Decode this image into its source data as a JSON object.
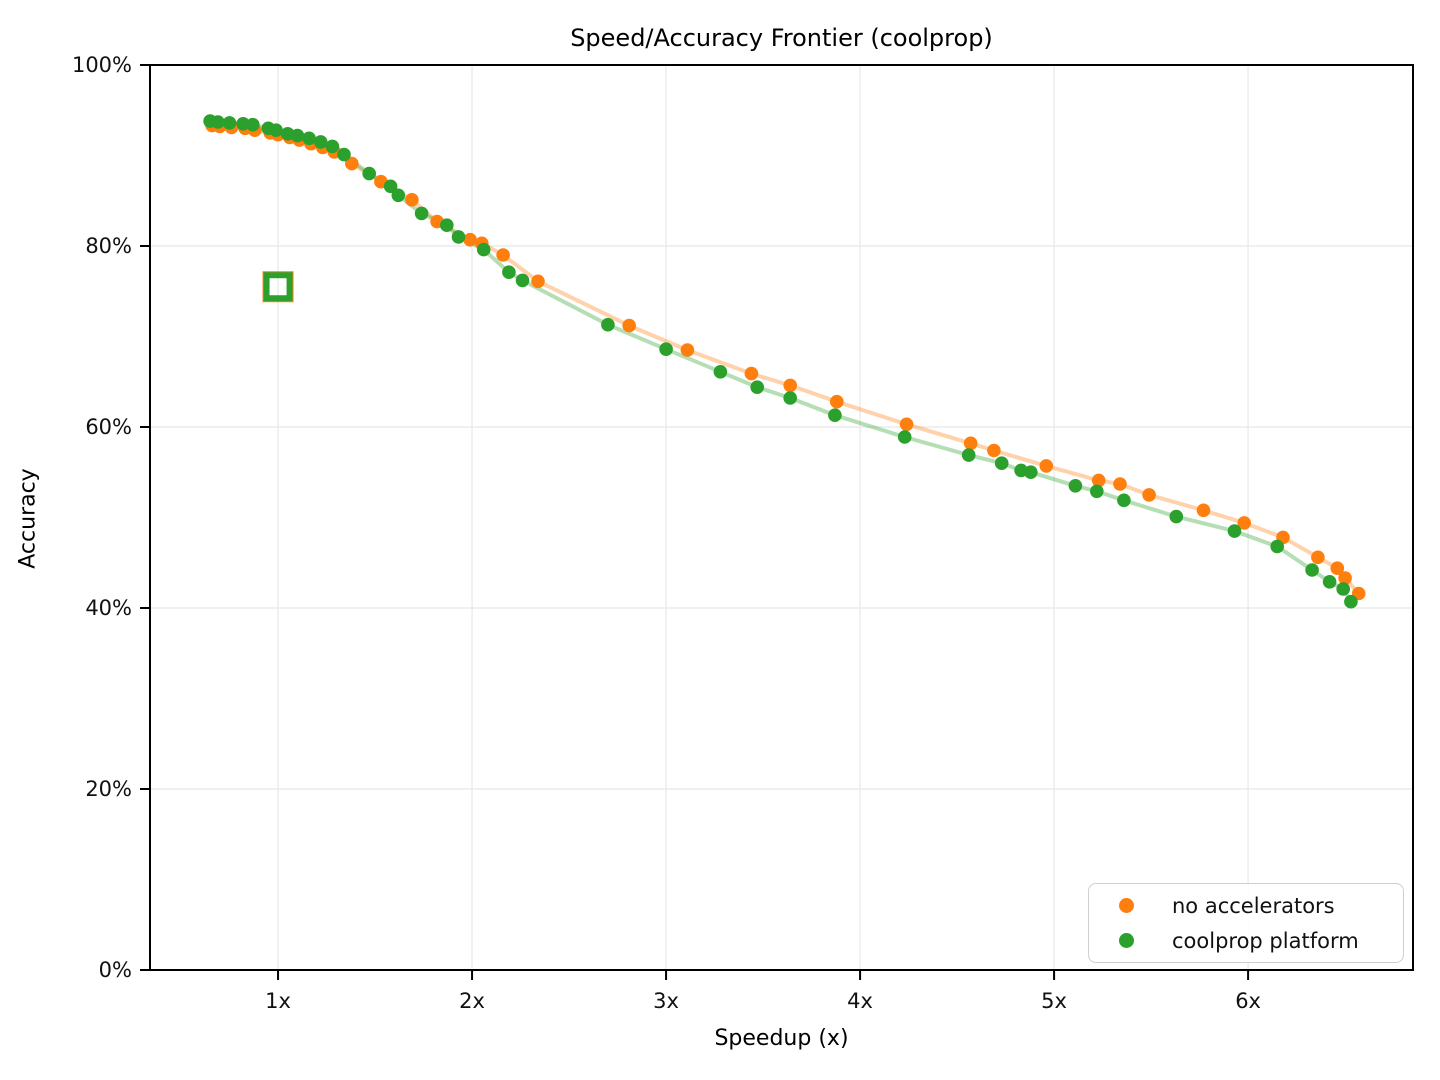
{
  "chart_data": {
    "type": "scatter",
    "title": "Speed/Accuracy Frontier (coolprop)",
    "xlabel": "Speedup (x)",
    "ylabel": "Accuracy",
    "xlim": [
      0.34,
      6.85
    ],
    "ylim": [
      0,
      100
    ],
    "grid": true,
    "legend_position": "lower right",
    "x_ticks": [
      {
        "value": 1,
        "label": "1x"
      },
      {
        "value": 2,
        "label": "2x"
      },
      {
        "value": 3,
        "label": "3x"
      },
      {
        "value": 4,
        "label": "4x"
      },
      {
        "value": 5,
        "label": "5x"
      },
      {
        "value": 6,
        "label": "6x"
      }
    ],
    "y_ticks": [
      {
        "value": 0,
        "label": "0%"
      },
      {
        "value": 20,
        "label": "20%"
      },
      {
        "value": 40,
        "label": "40%"
      },
      {
        "value": 60,
        "label": "60%"
      },
      {
        "value": 80,
        "label": "80%"
      },
      {
        "value": 100,
        "label": "100%"
      }
    ],
    "series": [
      {
        "name": "no accelerators",
        "color": "#ff7f0e",
        "marker": "circle",
        "points": [
          [
            0.66,
            93.3
          ],
          [
            0.7,
            93.2
          ],
          [
            0.76,
            93.1
          ],
          [
            0.83,
            93.0
          ],
          [
            0.88,
            92.8
          ],
          [
            0.96,
            92.5
          ],
          [
            1.0,
            92.3
          ],
          [
            1.06,
            92.0
          ],
          [
            1.11,
            91.7
          ],
          [
            1.17,
            91.3
          ],
          [
            1.23,
            90.9
          ],
          [
            1.29,
            90.4
          ],
          [
            1.38,
            89.1
          ],
          [
            1.53,
            87.1
          ],
          [
            1.69,
            85.1
          ],
          [
            1.82,
            82.7
          ],
          [
            1.99,
            80.7
          ],
          [
            2.05,
            80.3
          ],
          [
            2.16,
            79.0
          ],
          [
            2.34,
            76.1
          ],
          [
            2.81,
            71.2
          ],
          [
            3.11,
            68.5
          ],
          [
            3.44,
            65.9
          ],
          [
            3.64,
            64.6
          ],
          [
            3.88,
            62.8
          ],
          [
            4.24,
            60.3
          ],
          [
            4.57,
            58.2
          ],
          [
            4.69,
            57.4
          ],
          [
            4.96,
            55.7
          ],
          [
            5.23,
            54.1
          ],
          [
            5.34,
            53.7
          ],
          [
            5.49,
            52.5
          ],
          [
            5.77,
            50.8
          ],
          [
            5.98,
            49.4
          ],
          [
            6.18,
            47.8
          ],
          [
            6.36,
            45.6
          ],
          [
            6.46,
            44.4
          ],
          [
            6.5,
            43.3
          ],
          [
            6.57,
            41.6
          ]
        ]
      },
      {
        "name": "coolprop platform",
        "color": "#2ca02c",
        "marker": "circle",
        "points": [
          [
            0.65,
            93.8
          ],
          [
            0.69,
            93.7
          ],
          [
            0.75,
            93.6
          ],
          [
            0.82,
            93.5
          ],
          [
            0.87,
            93.4
          ],
          [
            0.95,
            93.0
          ],
          [
            0.99,
            92.8
          ],
          [
            1.05,
            92.4
          ],
          [
            1.1,
            92.2
          ],
          [
            1.16,
            91.9
          ],
          [
            1.22,
            91.5
          ],
          [
            1.28,
            91.0
          ],
          [
            1.34,
            90.1
          ],
          [
            1.47,
            88.0
          ],
          [
            1.58,
            86.6
          ],
          [
            1.62,
            85.6
          ],
          [
            1.74,
            83.6
          ],
          [
            1.87,
            82.3
          ],
          [
            1.93,
            81.0
          ],
          [
            2.06,
            79.6
          ],
          [
            2.19,
            77.1
          ],
          [
            2.26,
            76.2
          ],
          [
            2.7,
            71.3
          ],
          [
            3.0,
            68.6
          ],
          [
            3.28,
            66.1
          ],
          [
            3.47,
            64.4
          ],
          [
            3.64,
            63.2
          ],
          [
            3.87,
            61.3
          ],
          [
            4.23,
            58.9
          ],
          [
            4.56,
            56.9
          ],
          [
            4.73,
            56.0
          ],
          [
            4.83,
            55.2
          ],
          [
            4.88,
            55.0
          ],
          [
            5.11,
            53.5
          ],
          [
            5.22,
            52.9
          ],
          [
            5.36,
            51.9
          ],
          [
            5.63,
            50.1
          ],
          [
            5.93,
            48.5
          ],
          [
            6.15,
            46.8
          ],
          [
            6.33,
            44.2
          ],
          [
            6.42,
            42.9
          ],
          [
            6.49,
            42.1
          ],
          [
            6.53,
            40.7
          ]
        ]
      }
    ],
    "baseline_markers": [
      {
        "series": "no accelerators",
        "marker": "open-square",
        "x": 1.0,
        "y": 75.5,
        "color": "#ff7f0e"
      },
      {
        "series": "coolprop platform",
        "marker": "open-square",
        "x": 1.0,
        "y": 75.5,
        "color": "#2ca02c"
      }
    ]
  },
  "legend": {
    "items": [
      {
        "label": "no accelerators",
        "color": "#ff7f0e"
      },
      {
        "label": "coolprop platform",
        "color": "#2ca02c"
      }
    ]
  },
  "style": {
    "grid_color": "#ebebeb",
    "spine_color": "#000000",
    "text_color": "#111111",
    "line_opacity": 0.35
  }
}
